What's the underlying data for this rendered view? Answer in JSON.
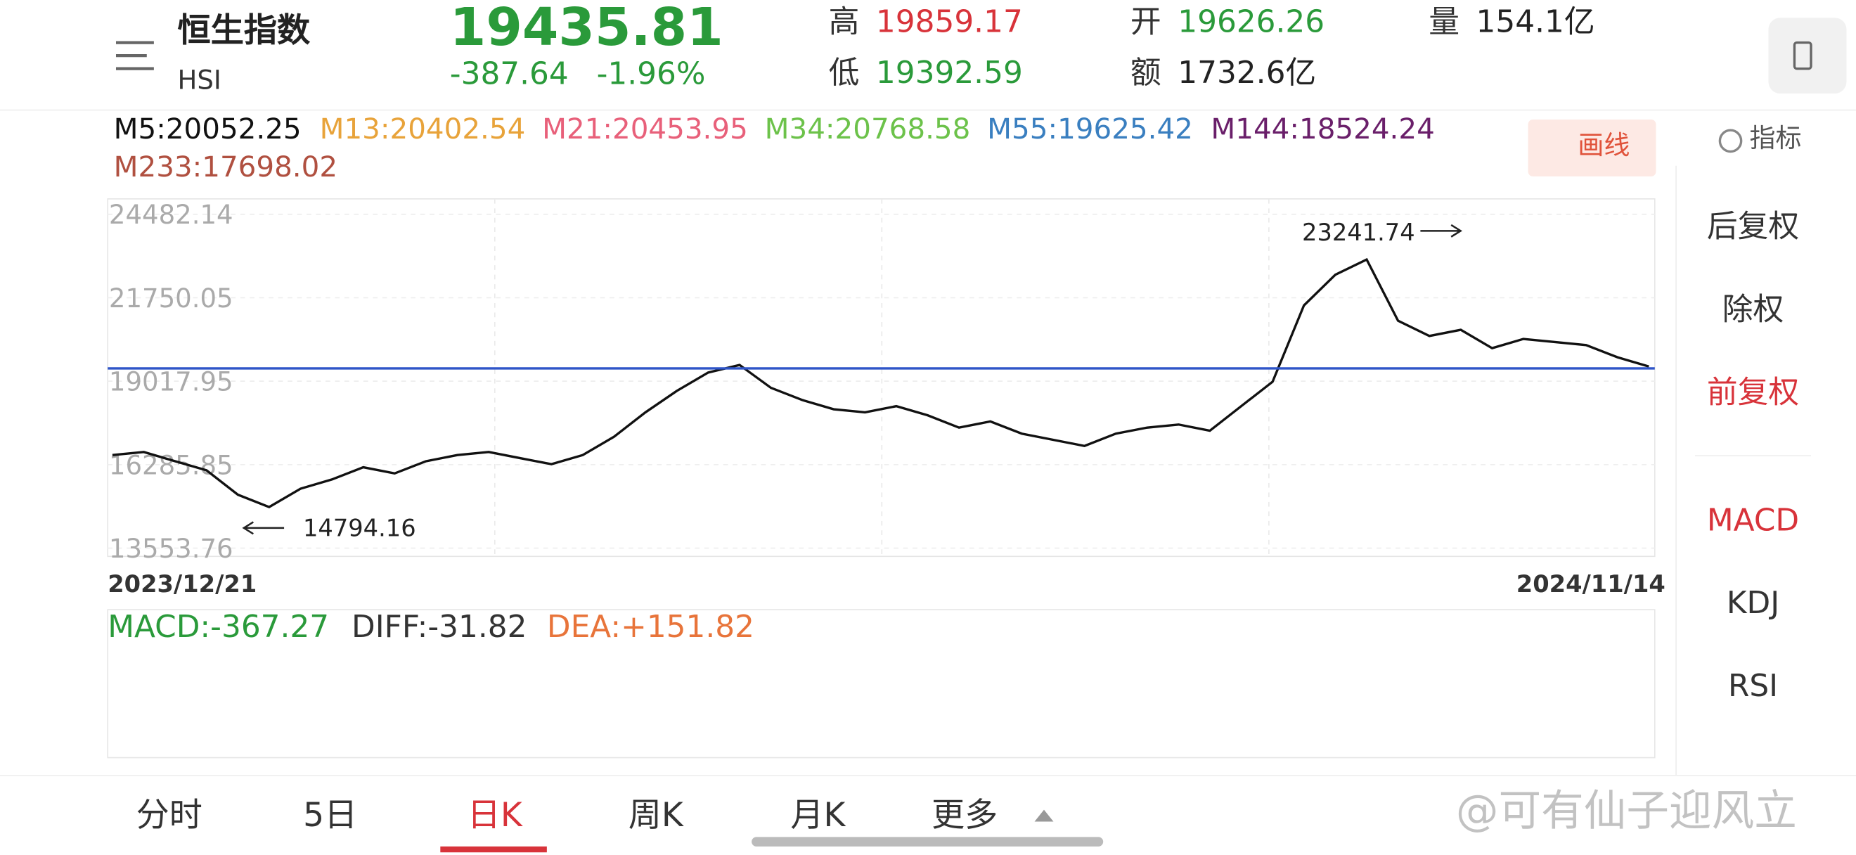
{
  "header": {
    "name": "恒生指数",
    "code": "HSI",
    "price": 19435.81,
    "change": "-387.64",
    "change_pct": "-1.96%",
    "stats": [
      {
        "label": "高",
        "value": 19859.17,
        "color": "#d8333a"
      },
      {
        "label": "低",
        "value": 19392.59,
        "color": "#2a9a3a"
      },
      {
        "label": "开",
        "value": 19626.26,
        "color": "#2a9a3a"
      },
      {
        "label": "额",
        "value": "1732.6亿",
        "color": "#222222"
      },
      {
        "label": "量",
        "value": "154.1亿",
        "color": "#222222"
      }
    ]
  },
  "ma_legend": [
    {
      "text": "M5:20052.25",
      "color": "#111111"
    },
    {
      "text": "M13:20402.54",
      "color": "#e8a33a"
    },
    {
      "text": "M21:20453.95",
      "color": "#e8607a"
    },
    {
      "text": "M34:20768.58",
      "color": "#6cc24a"
    },
    {
      "text": "M55:19625.42",
      "color": "#3a7fc0"
    },
    {
      "text": "M144:18524.24",
      "color": "#6a1f6a"
    },
    {
      "text": "M233:17698.02",
      "color": "#b05040"
    }
  ],
  "draw_button": "画线",
  "indicator_button": "指标",
  "kline": {
    "ylim": [
      13553.76,
      24482.14
    ],
    "yticks": [
      13553.76,
      16285.85,
      19017.95,
      21750.05,
      24482.14
    ],
    "start_date": "2023/12/21",
    "end_date": "2024/11/14",
    "close": [
      16600,
      16700,
      16400,
      16100,
      15300,
      14900,
      15500,
      15800,
      16200,
      16000,
      16400,
      16600,
      16700,
      16500,
      16300,
      16600,
      17200,
      18000,
      18700,
      19300,
      19550,
      18800,
      18400,
      18100,
      18000,
      18200,
      17900,
      17500,
      17700,
      17300,
      17100,
      16900,
      17300,
      17500,
      17600,
      17400,
      18200,
      19000,
      21500,
      22500,
      23000,
      21000,
      20500,
      20700,
      20100,
      20400,
      20300,
      20200,
      19800,
      19500
    ],
    "high_note": 23241.74,
    "low_note": 14794.16
  },
  "macd": {
    "macd": "MACD:-367.27",
    "diff": "DIFF:-31.82",
    "dea": "DEA:+151.82"
  },
  "side_menu": [
    {
      "label": "后复权",
      "active": false
    },
    {
      "label": "除权",
      "active": false
    },
    {
      "label": "前复权",
      "active": true
    },
    {
      "label": "MACD",
      "active": true
    },
    {
      "label": "KDJ",
      "active": false
    },
    {
      "label": "RSI",
      "active": false
    }
  ],
  "tabs": [
    {
      "label": "分时",
      "active": false
    },
    {
      "label": "5日",
      "active": false
    },
    {
      "label": "日K",
      "active": true
    },
    {
      "label": "周K",
      "active": false
    },
    {
      "label": "月K",
      "active": false
    },
    {
      "label": "更多",
      "active": false
    }
  ],
  "watermark": "@可有仙子迎风立"
}
